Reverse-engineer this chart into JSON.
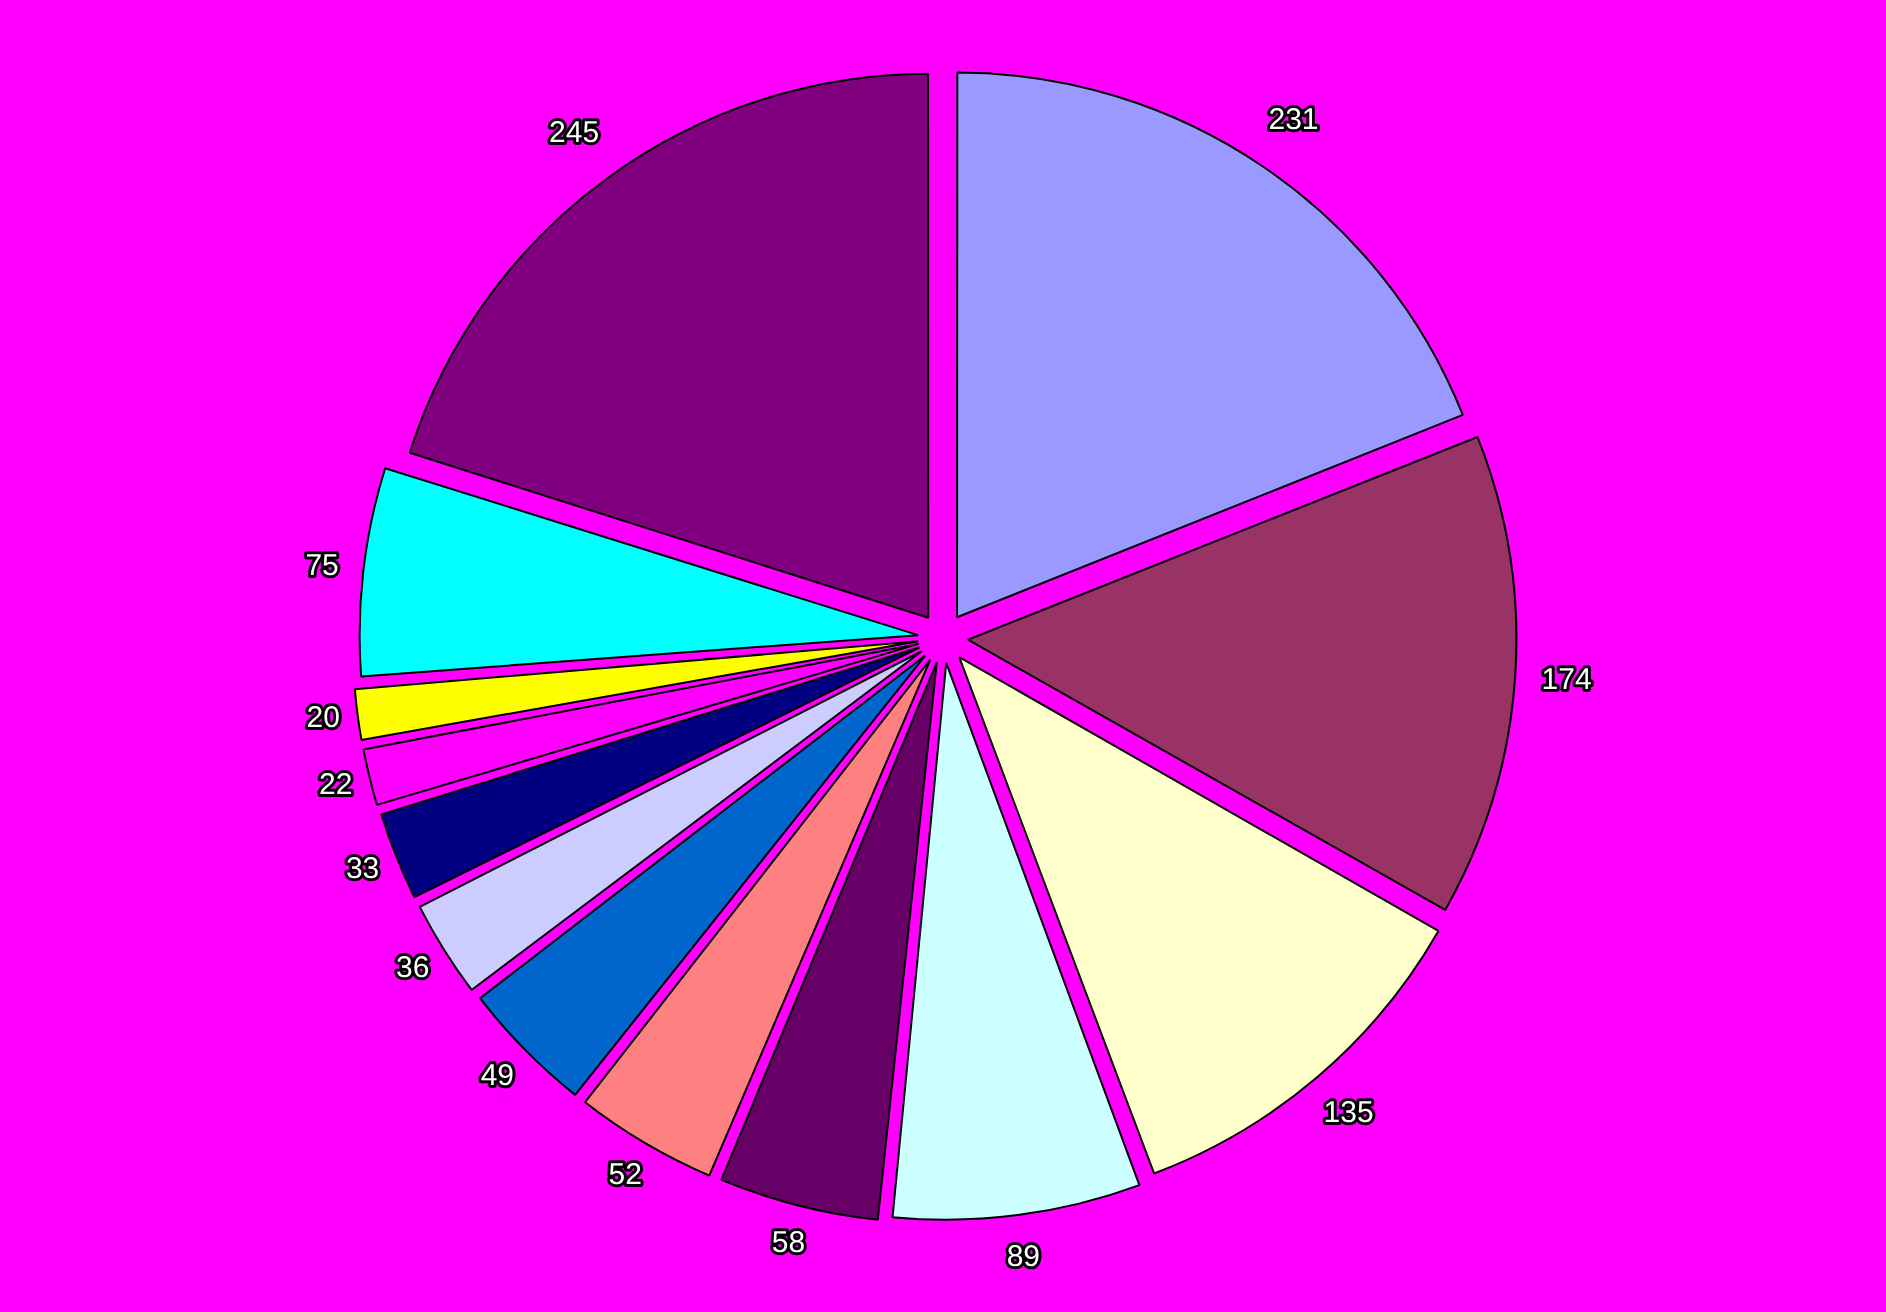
{
  "chart_data": {
    "type": "pie",
    "categories": [
      null,
      null,
      null,
      null,
      null,
      null,
      null,
      null,
      null,
      null,
      null,
      null,
      null
    ],
    "values": [
      231,
      174,
      135,
      89,
      58,
      52,
      49,
      36,
      33,
      22,
      20,
      75,
      245
    ],
    "colors": [
      "#9999ff",
      "#993366",
      "#ffffcc",
      "#ccffff",
      "#660066",
      "#ff8080",
      "#0066cc",
      "#ccccff",
      "#000080",
      "#ff00ff",
      "#ffff00",
      "#00ffff",
      "#800080"
    ],
    "data_labels": true
  }
}
